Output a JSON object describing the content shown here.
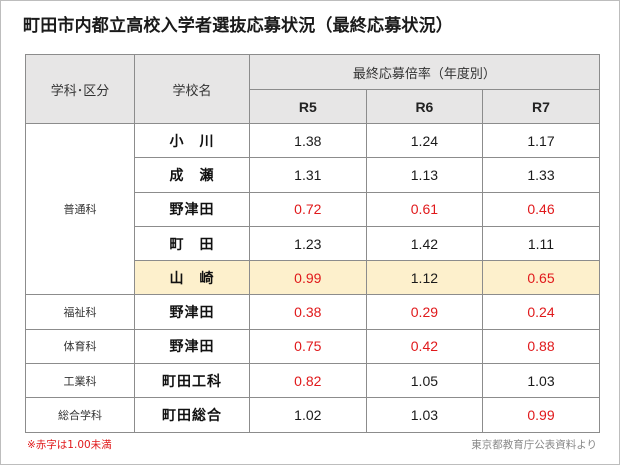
{
  "title": "町田市内都立高校入学者選抜応募状況（最終応募状況）",
  "header": {
    "category": "学科･区分",
    "school": "学校名",
    "ratio_group": "最終応募倍率（年度別）",
    "years": [
      "R5",
      "R6",
      "R7"
    ]
  },
  "groups": [
    {
      "category": "普通科",
      "rows": [
        {
          "school": "小　川",
          "values": [
            "1.38",
            "1.24",
            "1.17"
          ]
        },
        {
          "school": "成　瀬",
          "values": [
            "1.31",
            "1.13",
            "1.33"
          ]
        },
        {
          "school": "野津田",
          "values": [
            "0.72",
            "0.61",
            "0.46"
          ]
        },
        {
          "school": "町　田",
          "values": [
            "1.23",
            "1.42",
            "1.11"
          ]
        },
        {
          "school": "山　崎",
          "values": [
            "0.99",
            "1.12",
            "0.65"
          ],
          "highlight": true
        }
      ]
    },
    {
      "category": "福祉科",
      "rows": [
        {
          "school": "野津田",
          "values": [
            "0.38",
            "0.29",
            "0.24"
          ]
        }
      ]
    },
    {
      "category": "体育科",
      "rows": [
        {
          "school": "野津田",
          "values": [
            "0.75",
            "0.42",
            "0.88"
          ]
        }
      ]
    },
    {
      "category": "工業科",
      "rows": [
        {
          "school": "町田工科",
          "values": [
            "0.82",
            "1.05",
            "1.03"
          ]
        }
      ]
    },
    {
      "category": "総合学科",
      "rows": [
        {
          "school": "町田総合",
          "values": [
            "1.02",
            "1.03",
            "0.99"
          ]
        }
      ]
    }
  ],
  "footer": {
    "note": "※赤字は1.00未満",
    "source": "東京都教育庁公表資料より"
  },
  "colors": {
    "below_one": "#e0191b",
    "highlight_row": "#fdf0cc",
    "header_bg": "#e7e6e6"
  }
}
